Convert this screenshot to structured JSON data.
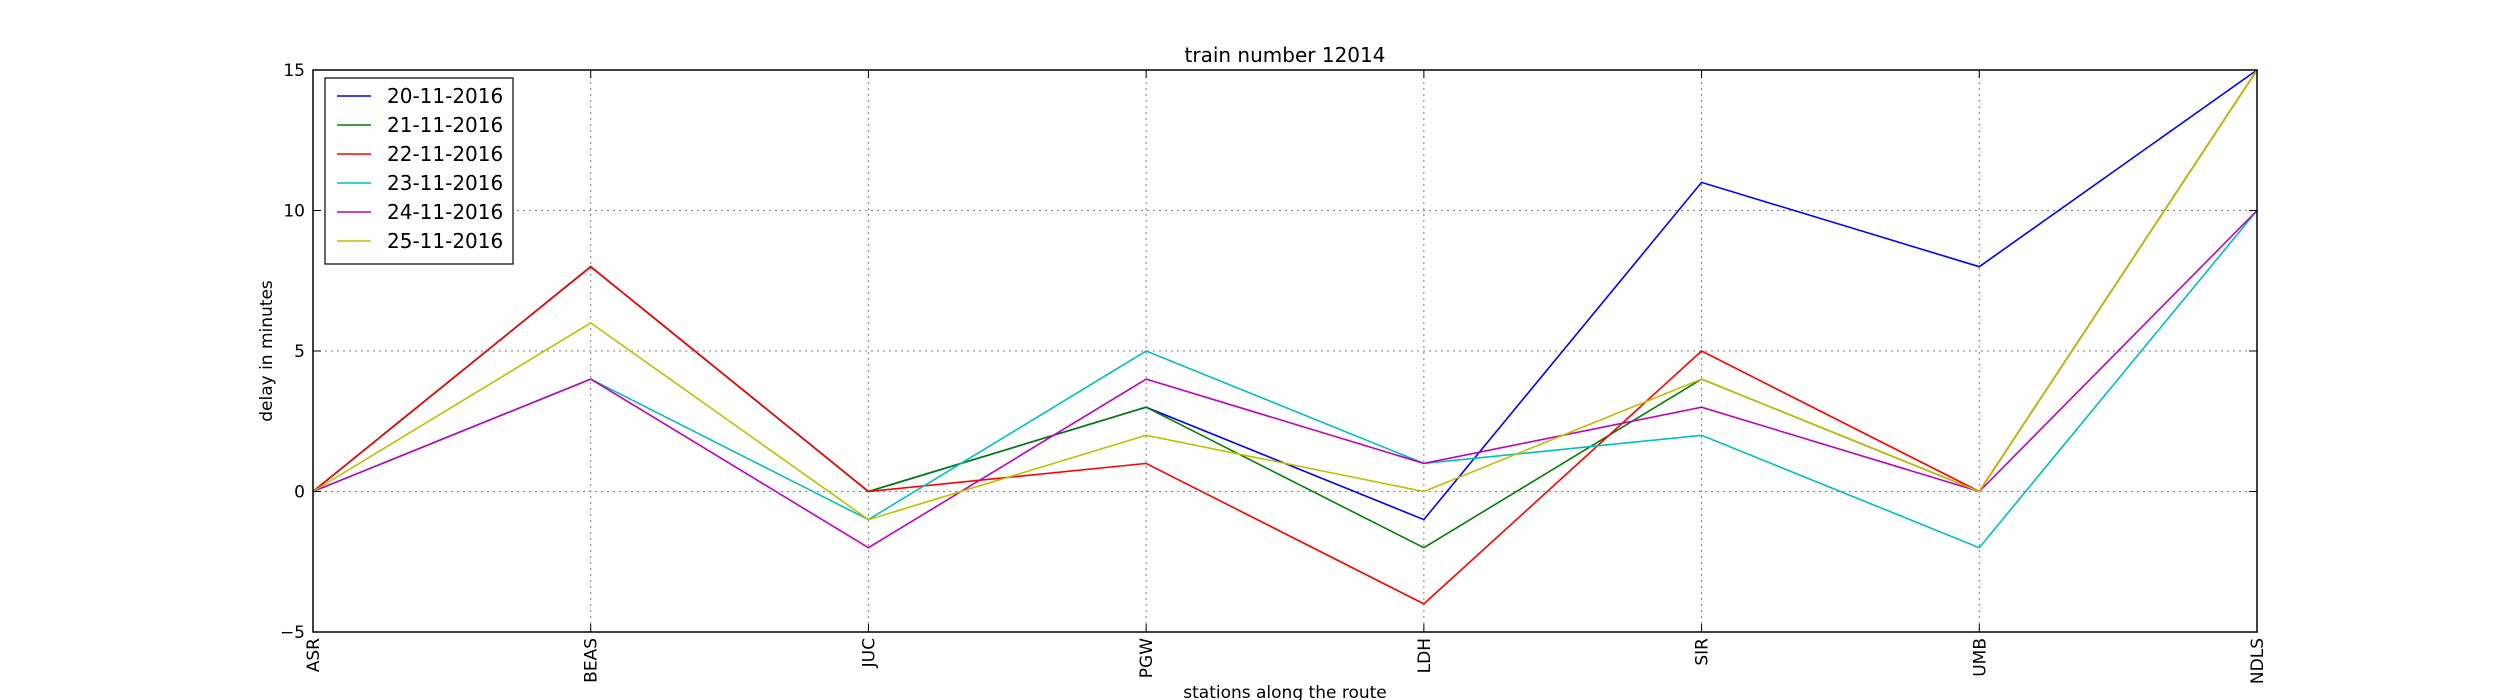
{
  "chart_data": {
    "type": "line",
    "title": "train number 12014",
    "xlabel": "stations along the route",
    "ylabel": "delay in minutes",
    "categories": [
      "ASR",
      "BEAS",
      "JUC",
      "PGW",
      "LDH",
      "SIR",
      "UMB",
      "NDLS"
    ],
    "ylim": [
      -5,
      15
    ],
    "yticks": [
      -5,
      0,
      5,
      10,
      15
    ],
    "grid": true,
    "legend_position": "top-left",
    "series": [
      {
        "name": "20-11-2016",
        "color": "#0000ff",
        "values": [
          0,
          8,
          0,
          3,
          -1,
          11,
          8,
          15
        ]
      },
      {
        "name": "21-11-2016",
        "color": "#008000",
        "values": [
          0,
          8,
          0,
          3,
          -2,
          4,
          0,
          15
        ]
      },
      {
        "name": "22-11-2016",
        "color": "#ff0000",
        "values": [
          0,
          8,
          0,
          1,
          -4,
          5,
          0,
          15
        ]
      },
      {
        "name": "23-11-2016",
        "color": "#00bfbf",
        "values": [
          0,
          4,
          -1,
          5,
          1,
          2,
          -2,
          10
        ]
      },
      {
        "name": "24-11-2016",
        "color": "#bf00bf",
        "values": [
          0,
          4,
          -2,
          4,
          1,
          3,
          0,
          10
        ]
      },
      {
        "name": "25-11-2016",
        "color": "#bfbf00",
        "values": [
          0,
          6,
          -1,
          2,
          0,
          4,
          0,
          15
        ]
      }
    ]
  }
}
